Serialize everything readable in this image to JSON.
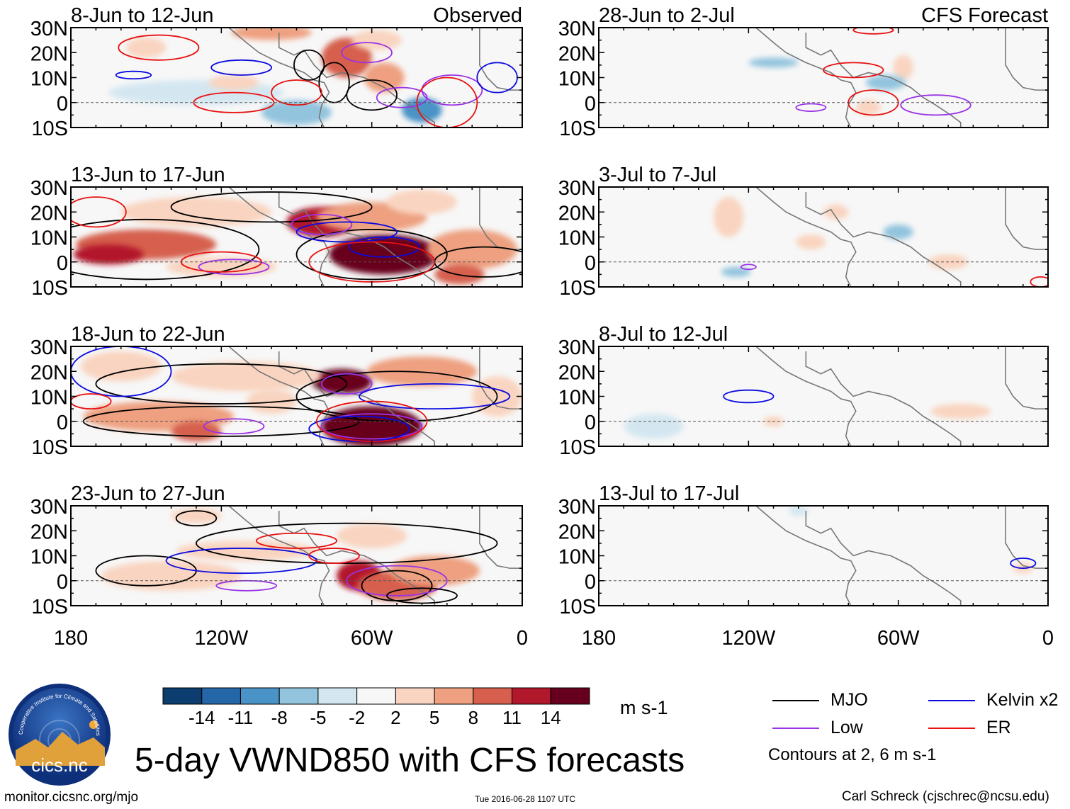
{
  "title": "5-day VWND850 with CFS forecasts",
  "units": "m s-1",
  "site": "monitor.cicsnc.org/mjo",
  "timestamp": "Tue 2016-06-28 1107 UTC",
  "credit": "Carl Schreck (cjschrec@ncsu.edu)",
  "contours_note": "Contours at 2, 6 m s-1",
  "logo": {
    "text": "cics.nc",
    "ring_text": "Cooperative Institute for Climate and Satellites"
  },
  "chart_data": {
    "type": "heatmap",
    "variable": "850-hPa meridional wind anomaly",
    "columns": [
      {
        "header": "Observed",
        "panels": [
          "8-Jun to 12-Jun",
          "13-Jun to 17-Jun",
          "18-Jun to 22-Jun",
          "23-Jun to 27-Jun"
        ]
      },
      {
        "header": "CFS Forecast",
        "panels": [
          "28-Jun to 2-Jul",
          "3-Jul to 7-Jul",
          "8-Jul to 12-Jul",
          "13-Jul to 17-Jul"
        ]
      }
    ],
    "lat_ticks": [
      "30N",
      "20N",
      "10N",
      "0",
      "10S"
    ],
    "lat_values": [
      30,
      20,
      10,
      0,
      -10
    ],
    "lon_ticks": [
      "180",
      "120W",
      "60W",
      "0"
    ],
    "lon_values": [
      -180,
      -120,
      -60,
      0
    ],
    "lon_range": [
      -180,
      0
    ],
    "lat_range": [
      -10,
      30
    ],
    "colorbar": {
      "levels": [
        "-14",
        "-11",
        "-8",
        "-5",
        "-2",
        "2",
        "5",
        "8",
        "11",
        "14"
      ],
      "colors": [
        "#0b3d6e",
        "#2466a8",
        "#4a93c6",
        "#93c4de",
        "#d4e7f1",
        "#f7f7f7",
        "#f9d4c0",
        "#eea080",
        "#d6604d",
        "#b2182b",
        "#67001f"
      ]
    },
    "legend": [
      {
        "label": "MJO",
        "color": "#000000"
      },
      {
        "label": "Kelvin x2",
        "color": "#0a0ae0"
      },
      {
        "label": "Low",
        "color": "#9a32e6"
      },
      {
        "label": "ER",
        "color": "#e81010"
      }
    ]
  }
}
